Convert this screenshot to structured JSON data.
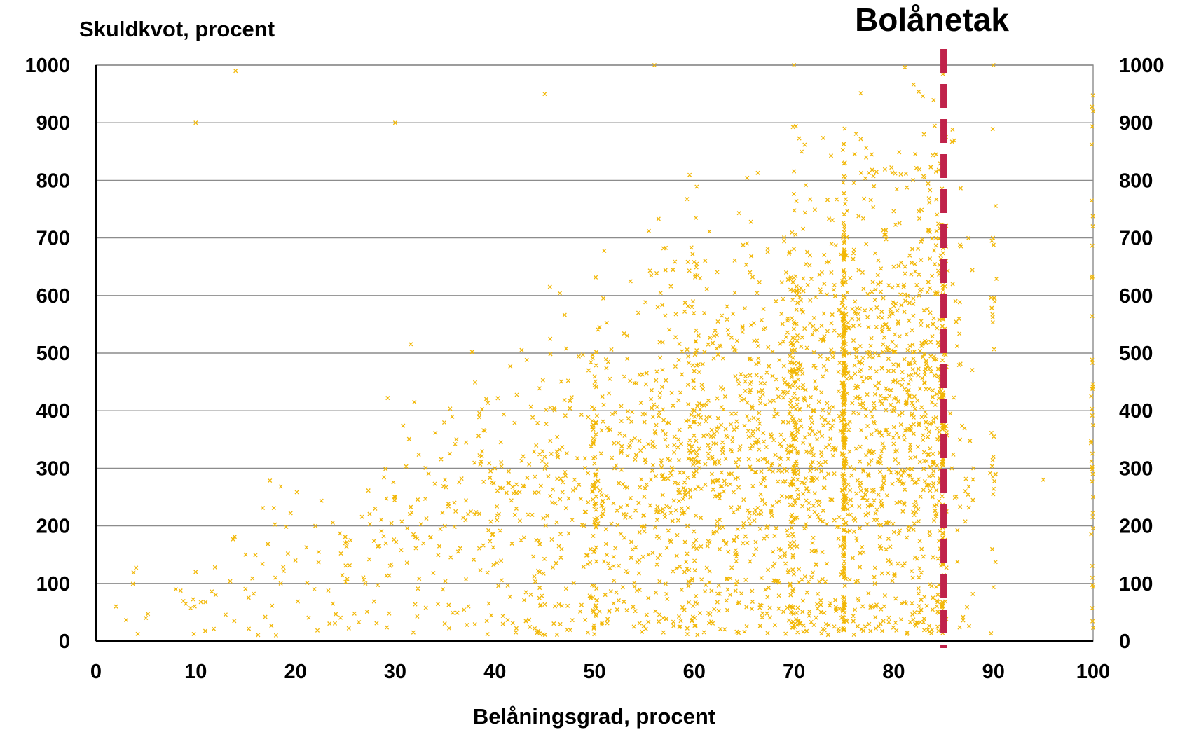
{
  "chart_data": {
    "type": "scatter",
    "title": "",
    "ylabel": "Skuldkvot, procent",
    "xlabel": "Belåningsgrad, procent",
    "xlim": [
      0,
      100
    ],
    "ylim": [
      0,
      1000
    ],
    "xticks": [
      "0",
      "10",
      "20",
      "30",
      "40",
      "50",
      "60",
      "70",
      "80",
      "90",
      "100"
    ],
    "yticks": [
      "0",
      "100",
      "200",
      "300",
      "400",
      "500",
      "600",
      "700",
      "800",
      "900",
      "1000"
    ],
    "secondary_yticks": [
      "0",
      "100",
      "200",
      "300",
      "400",
      "500",
      "600",
      "700",
      "800",
      "900",
      "1000"
    ],
    "grid": true,
    "marker_color": "#f2b705",
    "marker": "x",
    "annotations": [
      {
        "text": "Bolånetak",
        "x": 85,
        "line": "vertical-dashed",
        "color": "#c0234b"
      }
    ],
    "series": [
      {
        "points_note_shape": "dense cloud rising with x",
        "x_clusters": [
          10,
          20,
          30,
          40,
          50,
          60,
          70,
          75,
          85,
          90,
          100
        ],
        "density_center": {
          "x": 75,
          "y": 380
        },
        "sample_points": [
          [
            2,
            60
          ],
          [
            5,
            40
          ],
          [
            8,
            90
          ],
          [
            10,
            120
          ],
          [
            12,
            80
          ],
          [
            15,
            150
          ],
          [
            18,
            110
          ],
          [
            20,
            140
          ],
          [
            22,
            200
          ],
          [
            25,
            170
          ],
          [
            28,
            230
          ],
          [
            30,
            250
          ],
          [
            32,
            180
          ],
          [
            35,
            280
          ],
          [
            38,
            220
          ],
          [
            40,
            300
          ],
          [
            42,
            260
          ],
          [
            45,
            320
          ],
          [
            48,
            280
          ],
          [
            50,
            350
          ],
          [
            52,
            300
          ],
          [
            55,
            380
          ],
          [
            58,
            340
          ],
          [
            60,
            400
          ],
          [
            62,
            360
          ],
          [
            65,
            420
          ],
          [
            68,
            390
          ],
          [
            70,
            450
          ],
          [
            72,
            400
          ],
          [
            75,
            420
          ],
          [
            78,
            380
          ],
          [
            80,
            400
          ],
          [
            82,
            360
          ],
          [
            84,
            380
          ],
          [
            85,
            350
          ],
          [
            88,
            300
          ],
          [
            90,
            320
          ],
          [
            95,
            280
          ],
          [
            100,
            250
          ],
          [
            10,
            900
          ],
          [
            14,
            990
          ],
          [
            30,
            900
          ],
          [
            45,
            950
          ],
          [
            56,
            1000
          ],
          [
            70,
            1000
          ],
          [
            90,
            1000
          ],
          [
            100,
            920
          ]
        ]
      }
    ]
  }
}
